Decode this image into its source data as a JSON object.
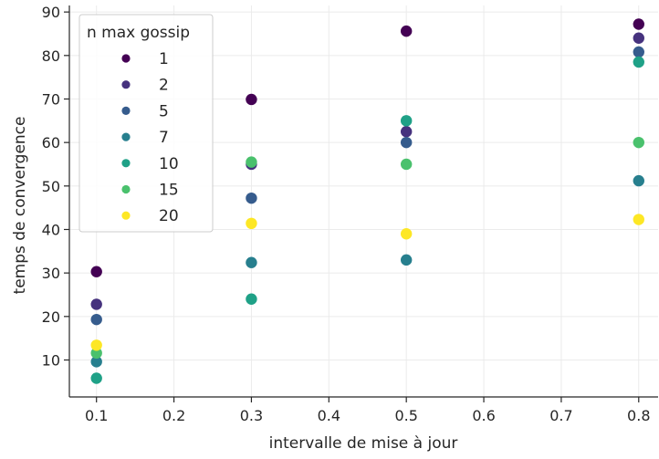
{
  "chart_data": {
    "type": "scatter",
    "title": "",
    "xlabel": "intervalle de mise à jour",
    "ylabel": "temps de convergence",
    "xlim": [
      0.065,
      0.825
    ],
    "ylim": [
      1.5,
      91.5
    ],
    "xticks": [
      0.1,
      0.2,
      0.3,
      0.4,
      0.5,
      0.6,
      0.7,
      0.8
    ],
    "xtick_labels": [
      "0.1",
      "0.2",
      "0.3",
      "0.4",
      "0.5",
      "0.6",
      "0.7",
      "0.8"
    ],
    "yticks": [
      10,
      20,
      30,
      40,
      50,
      60,
      70,
      80,
      90
    ],
    "ytick_labels": [
      "10",
      "20",
      "30",
      "40",
      "50",
      "60",
      "70",
      "80",
      "90"
    ],
    "grid": true,
    "legend": {
      "title": "n max gossip",
      "placement": "top-left"
    },
    "series": [
      {
        "name": "1",
        "color": "#440154",
        "x": [
          0.1,
          0.3,
          0.5,
          0.8
        ],
        "y": [
          30.3,
          69.9,
          85.6,
          87.2
        ]
      },
      {
        "name": "2",
        "color": "#46327e",
        "x": [
          0.1,
          0.3,
          0.5,
          0.8
        ],
        "y": [
          22.8,
          55.0,
          62.5,
          84.0
        ]
      },
      {
        "name": "5",
        "color": "#365c8d",
        "x": [
          0.1,
          0.3,
          0.5,
          0.8
        ],
        "y": [
          19.3,
          47.2,
          60.0,
          80.8
        ]
      },
      {
        "name": "7",
        "color": "#277f8e",
        "x": [
          0.1,
          0.3,
          0.5,
          0.8
        ],
        "y": [
          9.6,
          32.4,
          33.0,
          51.2
        ]
      },
      {
        "name": "10",
        "color": "#1fa187",
        "x": [
          0.1,
          0.3,
          0.5,
          0.8
        ],
        "y": [
          5.8,
          24.0,
          65.0,
          78.5
        ]
      },
      {
        "name": "15",
        "color": "#4ac16d",
        "x": [
          0.1,
          0.3,
          0.5,
          0.8
        ],
        "y": [
          11.6,
          55.5,
          55.0,
          60.0
        ]
      },
      {
        "name": "20",
        "color": "#fde725",
        "x": [
          0.1,
          0.3,
          0.5,
          0.8
        ],
        "y": [
          13.4,
          41.4,
          39.0,
          42.3
        ]
      }
    ]
  }
}
